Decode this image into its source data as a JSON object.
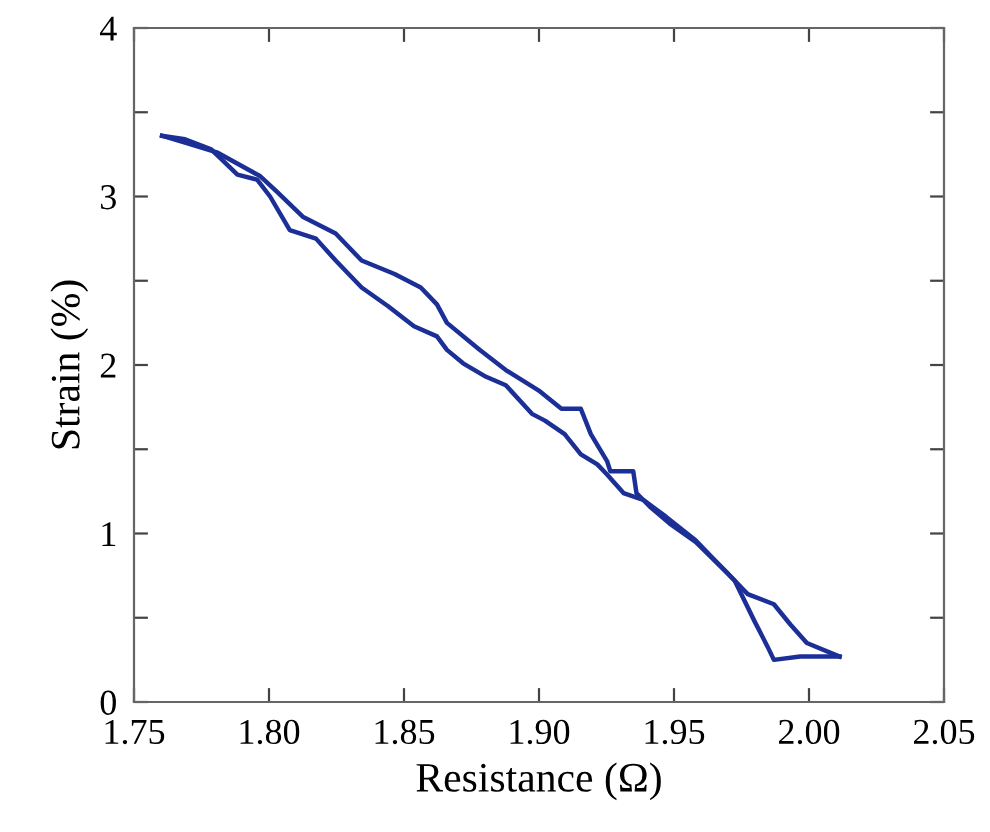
{
  "chart_data": {
    "type": "line",
    "xlabel": "Resistance (Ω)",
    "ylabel": "Strain (%)",
    "series": [
      {
        "color": "#1b2f96",
        "x": [
          1.7604,
          1.7689,
          1.781,
          1.7968,
          1.8028,
          1.8125,
          1.8247,
          1.8343,
          1.8465,
          1.8562,
          1.8622,
          1.8659,
          1.878,
          1.8877,
          1.8998,
          1.9083,
          1.9155,
          1.9192,
          1.9252,
          1.9264,
          1.9349,
          1.9361,
          1.941,
          1.9483,
          1.958,
          1.9701,
          1.9773,
          1.987,
          1.9931,
          1.9992,
          2.0113
        ],
        "values": [
          3.36,
          3.32,
          3.26,
          3.12,
          3.03,
          2.88,
          2.78,
          2.62,
          2.54,
          2.46,
          2.36,
          2.25,
          2.09,
          1.97,
          1.85,
          1.74,
          1.74,
          1.59,
          1.43,
          1.37,
          1.37,
          1.24,
          1.16,
          1.06,
          0.95,
          0.76,
          0.64,
          0.58,
          0.46,
          0.35,
          0.27
        ]
      },
      {
        "color": "#1b2f96",
        "x": [
          2.0113,
          1.9967,
          1.987,
          1.9846,
          1.9798,
          1.9725,
          1.9664,
          1.958,
          1.947,
          1.9386,
          1.9313,
          1.9252,
          1.9216,
          1.9155,
          1.9095,
          1.9022,
          1.8974,
          1.8877,
          1.8804,
          1.8719,
          1.8659,
          1.8622,
          1.8537,
          1.844,
          1.8343,
          1.8247,
          1.8174,
          1.8077,
          1.8004,
          1.7956,
          1.7883,
          1.7786,
          1.7689,
          1.7604
        ],
        "values": [
          0.27,
          0.27,
          0.25,
          0.33,
          0.48,
          0.72,
          0.82,
          0.96,
          1.1,
          1.2,
          1.24,
          1.35,
          1.41,
          1.47,
          1.59,
          1.67,
          1.71,
          1.88,
          1.93,
          2.01,
          2.09,
          2.17,
          2.23,
          2.35,
          2.46,
          2.62,
          2.75,
          2.8,
          3.0,
          3.1,
          3.13,
          3.28,
          3.34,
          3.36
        ]
      }
    ],
    "xlim": [
      1.75,
      2.05
    ],
    "ylim": [
      0,
      4
    ],
    "xticks": [
      {
        "value": 1.75,
        "label": "1.75"
      },
      {
        "value": 1.8,
        "label": "1.80"
      },
      {
        "value": 1.85,
        "label": "1.85"
      },
      {
        "value": 1.9,
        "label": "1.90"
      },
      {
        "value": 1.95,
        "label": "1.95"
      },
      {
        "value": 2.0,
        "label": "2.00"
      },
      {
        "value": 2.05,
        "label": "2.05"
      }
    ],
    "yticks": [
      0,
      {
        "value": 0.5,
        "label": null
      },
      1,
      {
        "value": 1.5,
        "label": null
      },
      2,
      {
        "value": 2.5,
        "label": null
      },
      3,
      {
        "value": 3.5,
        "label": null
      },
      4
    ],
    "grid": false,
    "legend": false,
    "marker": "none",
    "line_style": "solid"
  }
}
